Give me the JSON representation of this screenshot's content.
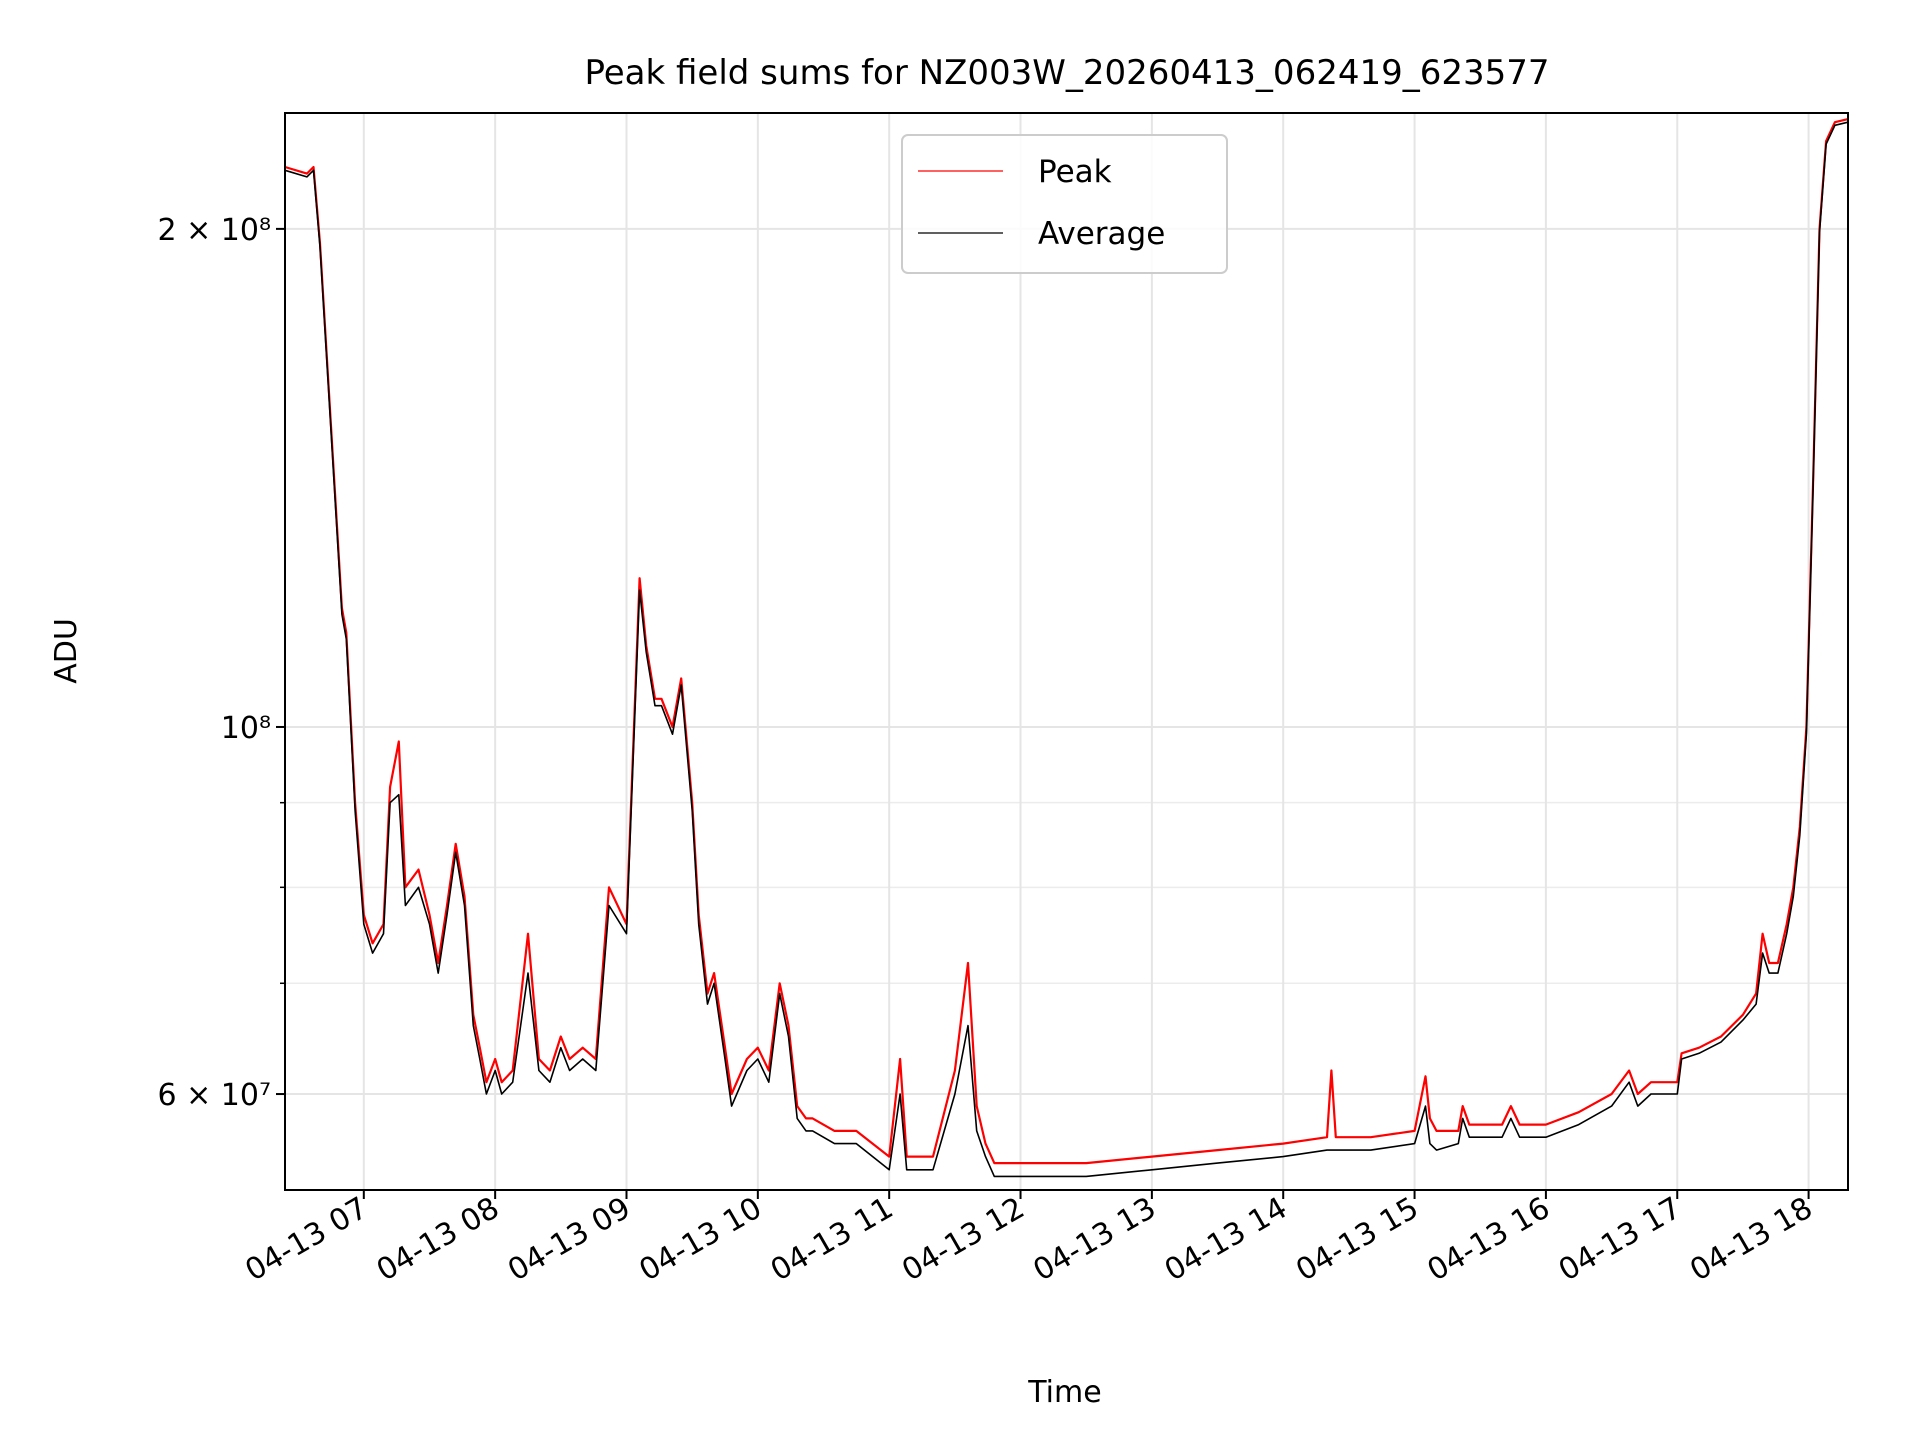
{
  "chart_data": {
    "type": "line",
    "title": "Peak field sums for NZ003W_20260413_062419_623577",
    "xlabel": "Time",
    "ylabel": "ADU",
    "yscale": "log",
    "grid": true,
    "legend_placement": "top-center",
    "x_range": [
      "2026-04-13 06:24",
      "2026-04-13 18:18"
    ],
    "ylim": [
      52500000,
      235000000
    ],
    "x_tick_labels": [
      "04-13 07",
      "04-13 08",
      "04-13 09",
      "04-13 10",
      "04-13 11",
      "04-13 12",
      "04-13 13",
      "04-13 14",
      "04-13 15",
      "04-13 16",
      "04-13 17",
      "04-13 18"
    ],
    "y_major_ticks": [
      {
        "value": 60000000,
        "label": "6 × 10⁷"
      },
      {
        "value": 100000000,
        "label": "10⁸"
      },
      {
        "value": 200000000,
        "label": "2 × 10⁸"
      }
    ],
    "y_minor_ticks": [
      70000000,
      80000000,
      90000000
    ],
    "series": [
      {
        "name": "Peak",
        "color": "#ff0000",
        "x": [
          "2026-04-13 06:24",
          "2026-04-13 06:34",
          "2026-04-13 06:37",
          "2026-04-13 06:40",
          "2026-04-13 06:45",
          "2026-04-13 06:50",
          "2026-04-13 06:52",
          "2026-04-13 06:56",
          "2026-04-13 07:00",
          "2026-04-13 07:04",
          "2026-04-13 07:09",
          "2026-04-13 07:12",
          "2026-04-13 07:16",
          "2026-04-13 07:19",
          "2026-04-13 07:25",
          "2026-04-13 07:30",
          "2026-04-13 07:34",
          "2026-04-13 07:38",
          "2026-04-13 07:42",
          "2026-04-13 07:46",
          "2026-04-13 07:50",
          "2026-04-13 07:53",
          "2026-04-13 07:56",
          "2026-04-13 08:00",
          "2026-04-13 08:03",
          "2026-04-13 08:08",
          "2026-04-13 08:15",
          "2026-04-13 08:20",
          "2026-04-13 08:25",
          "2026-04-13 08:30",
          "2026-04-13 08:34",
          "2026-04-13 08:40",
          "2026-04-13 08:46",
          "2026-04-13 08:52",
          "2026-04-13 09:00",
          "2026-04-13 09:06",
          "2026-04-13 09:09",
          "2026-04-13 09:13",
          "2026-04-13 09:16",
          "2026-04-13 09:21",
          "2026-04-13 09:25",
          "2026-04-13 09:30",
          "2026-04-13 09:33",
          "2026-04-13 09:37",
          "2026-04-13 09:40",
          "2026-04-13 09:45",
          "2026-04-13 09:48",
          "2026-04-13 09:55",
          "2026-04-13 10:00",
          "2026-04-13 10:05",
          "2026-04-13 10:10",
          "2026-04-13 10:14",
          "2026-04-13 10:18",
          "2026-04-13 10:22",
          "2026-04-13 10:25",
          "2026-04-13 10:35",
          "2026-04-13 10:45",
          "2026-04-13 11:00",
          "2026-04-13 11:05",
          "2026-04-13 11:08",
          "2026-04-13 11:12",
          "2026-04-13 11:20",
          "2026-04-13 11:30",
          "2026-04-13 11:36",
          "2026-04-13 11:40",
          "2026-04-13 11:44",
          "2026-04-13 11:48",
          "2026-04-13 11:52",
          "2026-04-13 12:00",
          "2026-04-13 12:30",
          "2026-04-13 13:00",
          "2026-04-13 13:30",
          "2026-04-13 14:00",
          "2026-04-13 14:20",
          "2026-04-13 14:22",
          "2026-04-13 14:24",
          "2026-04-13 14:40",
          "2026-04-13 15:00",
          "2026-04-13 15:05",
          "2026-04-13 15:07",
          "2026-04-13 15:10",
          "2026-04-13 15:20",
          "2026-04-13 15:22",
          "2026-04-13 15:25",
          "2026-04-13 15:40",
          "2026-04-13 15:44",
          "2026-04-13 15:48",
          "2026-04-13 16:00",
          "2026-04-13 16:15",
          "2026-04-13 16:30",
          "2026-04-13 16:38",
          "2026-04-13 16:42",
          "2026-04-13 16:48",
          "2026-04-13 17:00",
          "2026-04-13 17:02",
          "2026-04-13 17:10",
          "2026-04-13 17:20",
          "2026-04-13 17:30",
          "2026-04-13 17:36",
          "2026-04-13 17:39",
          "2026-04-13 17:42",
          "2026-04-13 17:46",
          "2026-04-13 17:50",
          "2026-04-13 17:53",
          "2026-04-13 17:56",
          "2026-04-13 17:59",
          "2026-04-13 18:02",
          "2026-04-13 18:05",
          "2026-04-13 18:08",
          "2026-04-13 18:12",
          "2026-04-13 18:18"
        ],
        "y": [
          218000000,
          216000000,
          218000000,
          196000000,
          152000000,
          118000000,
          114000000,
          90000000,
          77000000,
          74000000,
          76000000,
          92000000,
          98000000,
          80000000,
          82000000,
          77000000,
          72000000,
          78000000,
          85000000,
          79000000,
          67000000,
          64000000,
          61000000,
          63000000,
          61000000,
          62000000,
          75000000,
          63000000,
          62000000,
          65000000,
          63000000,
          64000000,
          63000000,
          80000000,
          76000000,
          123000000,
          112000000,
          104000000,
          104000000,
          100000000,
          107000000,
          90000000,
          77000000,
          69000000,
          71000000,
          64000000,
          60000000,
          63000000,
          64000000,
          62000000,
          70000000,
          66000000,
          59000000,
          58000000,
          58000000,
          57000000,
          57000000,
          55000000,
          63000000,
          55000000,
          55000000,
          55000000,
          62000000,
          72000000,
          59000000,
          56000000,
          54500000,
          54500000,
          54500000,
          54500000,
          55000000,
          55500000,
          56000000,
          56500000,
          62000000,
          56500000,
          56500000,
          57000000,
          61500000,
          58000000,
          57000000,
          57000000,
          59000000,
          57500000,
          57500000,
          59000000,
          57500000,
          57500000,
          58500000,
          60000000,
          62000000,
          60000000,
          61000000,
          61000000,
          63500000,
          64000000,
          65000000,
          67000000,
          69000000,
          75000000,
          72000000,
          72000000,
          76000000,
          80000000,
          87000000,
          100000000,
          140000000,
          200000000,
          226000000,
          232000000,
          233000000
        ]
      },
      {
        "name": "Average",
        "color": "#000000",
        "x": [
          "2026-04-13 06:24",
          "2026-04-13 06:34",
          "2026-04-13 06:37",
          "2026-04-13 06:40",
          "2026-04-13 06:45",
          "2026-04-13 06:50",
          "2026-04-13 06:52",
          "2026-04-13 06:56",
          "2026-04-13 07:00",
          "2026-04-13 07:04",
          "2026-04-13 07:09",
          "2026-04-13 07:12",
          "2026-04-13 07:16",
          "2026-04-13 07:19",
          "2026-04-13 07:25",
          "2026-04-13 07:30",
          "2026-04-13 07:34",
          "2026-04-13 07:38",
          "2026-04-13 07:42",
          "2026-04-13 07:46",
          "2026-04-13 07:50",
          "2026-04-13 07:53",
          "2026-04-13 07:56",
          "2026-04-13 08:00",
          "2026-04-13 08:03",
          "2026-04-13 08:08",
          "2026-04-13 08:15",
          "2026-04-13 08:20",
          "2026-04-13 08:25",
          "2026-04-13 08:30",
          "2026-04-13 08:34",
          "2026-04-13 08:40",
          "2026-04-13 08:46",
          "2026-04-13 08:52",
          "2026-04-13 09:00",
          "2026-04-13 09:06",
          "2026-04-13 09:09",
          "2026-04-13 09:13",
          "2026-04-13 09:16",
          "2026-04-13 09:21",
          "2026-04-13 09:25",
          "2026-04-13 09:30",
          "2026-04-13 09:33",
          "2026-04-13 09:37",
          "2026-04-13 09:40",
          "2026-04-13 09:45",
          "2026-04-13 09:48",
          "2026-04-13 09:55",
          "2026-04-13 10:00",
          "2026-04-13 10:05",
          "2026-04-13 10:10",
          "2026-04-13 10:14",
          "2026-04-13 10:18",
          "2026-04-13 10:22",
          "2026-04-13 10:25",
          "2026-04-13 10:35",
          "2026-04-13 10:45",
          "2026-04-13 11:00",
          "2026-04-13 11:05",
          "2026-04-13 11:08",
          "2026-04-13 11:12",
          "2026-04-13 11:20",
          "2026-04-13 11:30",
          "2026-04-13 11:36",
          "2026-04-13 11:40",
          "2026-04-13 11:44",
          "2026-04-13 11:48",
          "2026-04-13 11:52",
          "2026-04-13 12:00",
          "2026-04-13 12:30",
          "2026-04-13 13:00",
          "2026-04-13 13:30",
          "2026-04-13 14:00",
          "2026-04-13 14:20",
          "2026-04-13 14:22",
          "2026-04-13 14:24",
          "2026-04-13 14:40",
          "2026-04-13 15:00",
          "2026-04-13 15:05",
          "2026-04-13 15:07",
          "2026-04-13 15:10",
          "2026-04-13 15:20",
          "2026-04-13 15:22",
          "2026-04-13 15:25",
          "2026-04-13 15:40",
          "2026-04-13 15:44",
          "2026-04-13 15:48",
          "2026-04-13 16:00",
          "2026-04-13 16:15",
          "2026-04-13 16:30",
          "2026-04-13 16:38",
          "2026-04-13 16:42",
          "2026-04-13 16:48",
          "2026-04-13 17:00",
          "2026-04-13 17:02",
          "2026-04-13 17:10",
          "2026-04-13 17:20",
          "2026-04-13 17:30",
          "2026-04-13 17:36",
          "2026-04-13 17:39",
          "2026-04-13 17:42",
          "2026-04-13 17:46",
          "2026-04-13 17:50",
          "2026-04-13 17:53",
          "2026-04-13 17:56",
          "2026-04-13 17:59",
          "2026-04-13 18:02",
          "2026-04-13 18:05",
          "2026-04-13 18:08",
          "2026-04-13 18:12",
          "2026-04-13 18:18"
        ],
        "y": [
          217000000,
          215000000,
          217000000,
          195000000,
          151000000,
          117000000,
          113000000,
          89000000,
          76000000,
          73000000,
          75000000,
          90000000,
          91000000,
          78000000,
          80000000,
          76000000,
          71000000,
          77000000,
          84000000,
          78000000,
          66000000,
          63000000,
          60000000,
          62000000,
          60000000,
          61000000,
          71000000,
          62000000,
          61000000,
          64000000,
          62000000,
          63000000,
          62000000,
          78000000,
          75000000,
          121000000,
          111000000,
          103000000,
          103000000,
          99000000,
          106000000,
          89000000,
          76000000,
          68000000,
          70000000,
          63000000,
          59000000,
          62000000,
          63000000,
          61000000,
          69000000,
          65000000,
          58000000,
          57000000,
          57000000,
          56000000,
          56000000,
          54000000,
          60000000,
          54000000,
          54000000,
          54000000,
          60000000,
          66000000,
          57000000,
          55000000,
          53500000,
          53500000,
          53500000,
          53500000,
          54000000,
          54500000,
          55000000,
          55500000,
          55500000,
          55500000,
          55500000,
          56000000,
          59000000,
          56000000,
          55500000,
          56000000,
          58000000,
          56500000,
          56500000,
          58000000,
          56500000,
          56500000,
          57500000,
          59000000,
          61000000,
          59000000,
          60000000,
          60000000,
          63000000,
          63500000,
          64500000,
          66500000,
          68000000,
          73000000,
          71000000,
          71000000,
          75000000,
          79000000,
          86000000,
          99000000,
          139000000,
          199000000,
          225000000,
          231000000,
          232000000
        ]
      }
    ]
  }
}
